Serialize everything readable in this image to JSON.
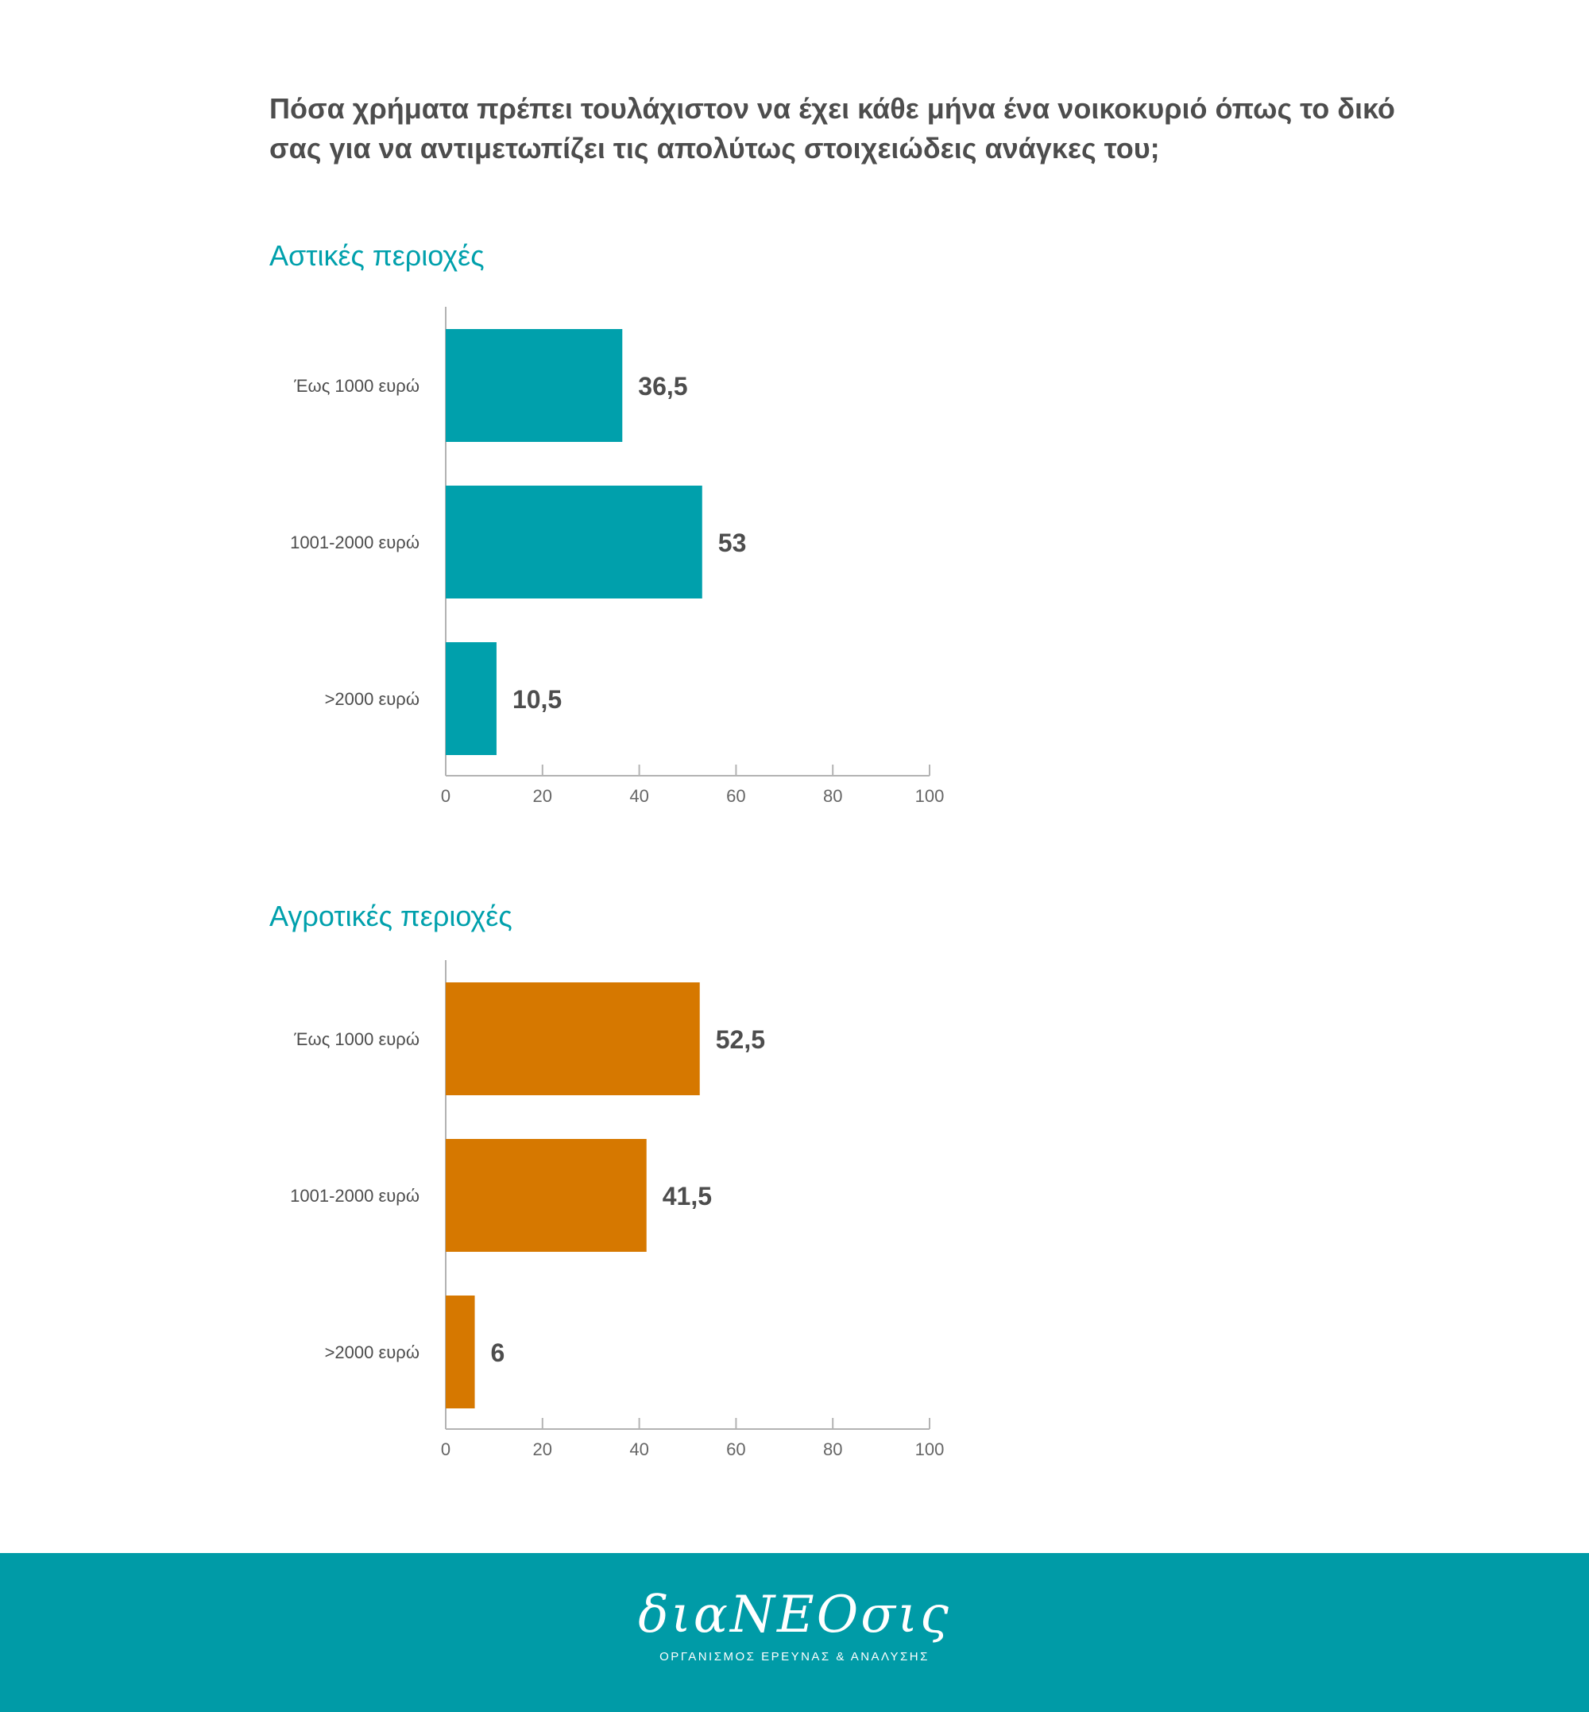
{
  "title": "Πόσα χρήματα πρέπει τουλάχιστον να έχει κάθε μήνα ένα νοικοκυριό όπως το δικό σας για να αντιμετωπίζει τις απολύτως στοιχειώδεις ανάγκες του;",
  "chart_data": [
    {
      "type": "bar",
      "orientation": "horizontal",
      "title": "Αστικές περιοχές",
      "categories": [
        "Έως 1000 ευρώ",
        "1001-2000 ευρώ",
        ">2000 ευρώ"
      ],
      "values": [
        36.5,
        53,
        10.5
      ],
      "value_labels": [
        "36,5",
        "53",
        "10,5"
      ],
      "xlim": [
        0,
        100
      ],
      "xticks": [
        "0",
        "20",
        "40",
        "60",
        "80",
        "100"
      ],
      "grid": false,
      "color": "#00a0ac"
    },
    {
      "type": "bar",
      "orientation": "horizontal",
      "title": "Αγροτικές περιοχές",
      "categories": [
        "Έως 1000 ευρώ",
        "1001-2000 ευρώ",
        ">2000 ευρώ"
      ],
      "values": [
        52.5,
        41.5,
        6
      ],
      "value_labels": [
        "52,5",
        "41,5",
        "6"
      ],
      "xlim": [
        0,
        100
      ],
      "xticks": [
        "0",
        "20",
        "40",
        "60",
        "80",
        "100"
      ],
      "grid": false,
      "color": "#d67800"
    }
  ],
  "footer": {
    "background": "#009ba7",
    "logo_text": "διαΝΕΟσις",
    "logo_subtitle": "ΟΡΓΑΝΙΣΜΟΣ ΕΡΕΥΝΑΣ & ΑΝΑΛΥΣΗΣ"
  }
}
